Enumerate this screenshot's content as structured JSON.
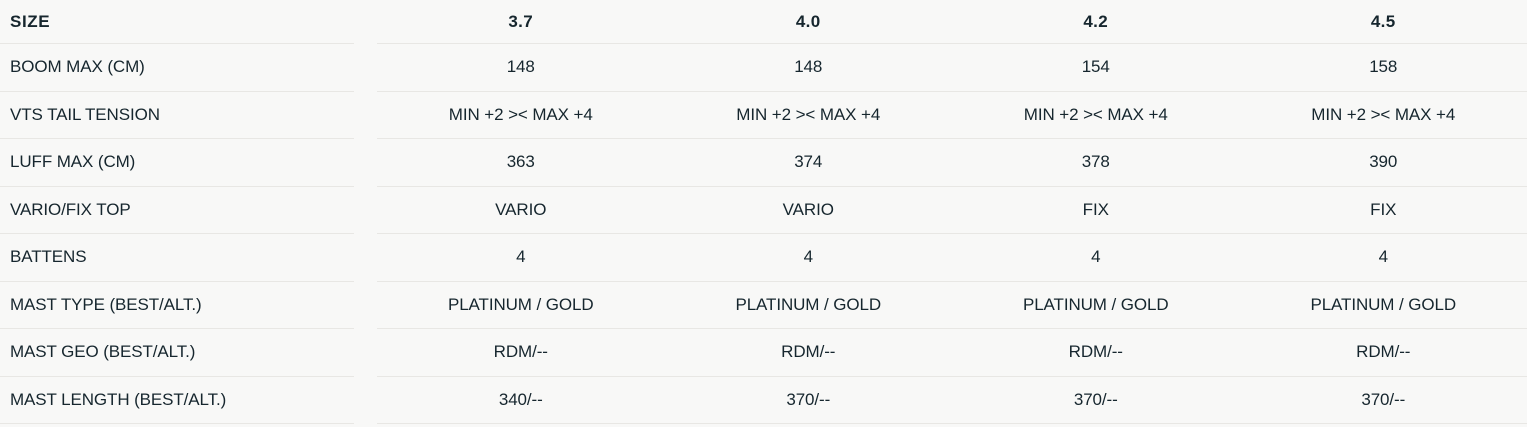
{
  "table": {
    "header": {
      "label": "SIZE",
      "columns": [
        "3.7",
        "4.0",
        "4.2",
        "4.5"
      ]
    },
    "rows": [
      {
        "label": "BOOM MAX (CM)",
        "values": [
          "148",
          "148",
          "154",
          "158"
        ]
      },
      {
        "label": "VTS TAIL TENSION",
        "values": [
          "MIN +2 >< MAX +4",
          "MIN +2 >< MAX +4",
          "MIN +2 >< MAX +4",
          "MIN +2 >< MAX +4"
        ]
      },
      {
        "label": "LUFF MAX (CM)",
        "values": [
          "363",
          "374",
          "378",
          "390"
        ]
      },
      {
        "label": "VARIO/FIX TOP",
        "values": [
          "VARIO",
          "VARIO",
          "FIX",
          "FIX"
        ]
      },
      {
        "label": "BATTENS",
        "values": [
          "4",
          "4",
          "4",
          "4"
        ]
      },
      {
        "label": "MAST TYPE (BEST/ALT.)",
        "values": [
          "PLATINUM / GOLD",
          "PLATINUM / GOLD",
          "PLATINUM / GOLD",
          "PLATINUM / GOLD"
        ]
      },
      {
        "label": "MAST GEO (BEST/ALT.)",
        "values": [
          "RDM/--",
          "RDM/--",
          "RDM/--",
          "RDM/--"
        ]
      },
      {
        "label": "MAST LENGTH (BEST/ALT.)",
        "values": [
          "340/--",
          "370/--",
          "370/--",
          "370/--"
        ]
      }
    ],
    "colors": {
      "background": "#f8f8f7",
      "text": "#16262e",
      "divider": "#e8e7e4"
    }
  }
}
